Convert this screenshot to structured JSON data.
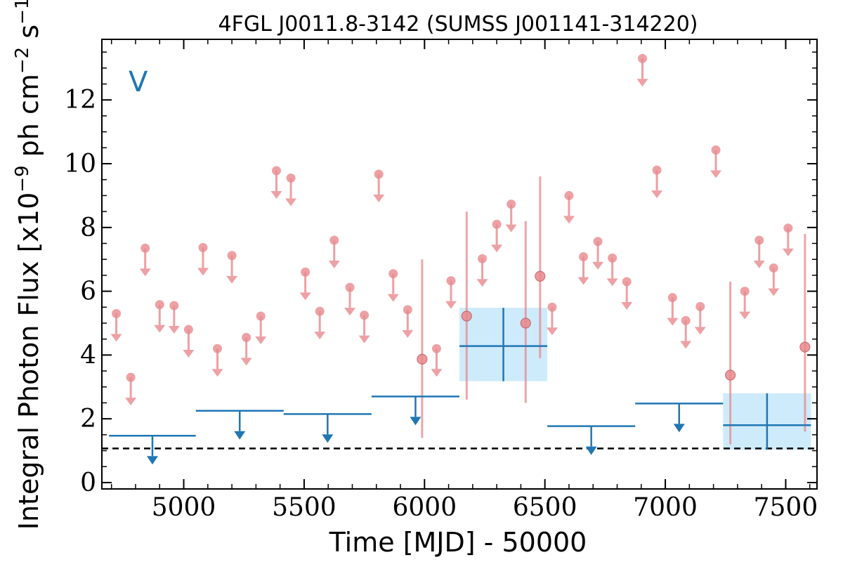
{
  "chart_data": {
    "type": "scatter",
    "title": "4FGL J0011.8-3142 (SUMSS J001141-314220)",
    "panel_label": "V",
    "xlabel": "Time [MJD] - 50000",
    "ylabel_parts": {
      "pre": "Integral Photon Flux [x10",
      "exp1": "−9",
      "mid": " ph cm",
      "exp2": "−2",
      "mid2": " s",
      "exp3": "−1",
      "post": "]"
    },
    "xlim": [
      4660,
      7630
    ],
    "ylim": [
      -0.2,
      13.9
    ],
    "xticks": [
      5000,
      5500,
      6000,
      6500,
      7000,
      7500
    ],
    "xtick_labels": [
      "5000",
      "5500",
      "6000",
      "6500",
      "7000",
      "7500"
    ],
    "yticks": [
      0,
      2,
      4,
      6,
      8,
      10,
      12
    ],
    "ytick_labels": [
      "0",
      "2",
      "4",
      "6",
      "8",
      "10",
      "12"
    ],
    "x_minor_step": 100,
    "y_minor_step": 0.5,
    "baseline_flux": 1.07,
    "colors": {
      "short_bin": "#e8898d",
      "long_bin": "#1f77b4",
      "detection_band": "#cdebfb",
      "baseline": "#000000"
    },
    "series": [
      {
        "kind": "short_bin_upper_limits",
        "points": [
          {
            "x": 4720,
            "y": 5.3
          },
          {
            "x": 4780,
            "y": 3.3
          },
          {
            "x": 4840,
            "y": 7.35
          },
          {
            "x": 4900,
            "y": 5.58
          },
          {
            "x": 4960,
            "y": 5.55
          },
          {
            "x": 5020,
            "y": 4.8
          },
          {
            "x": 5080,
            "y": 7.37
          },
          {
            "x": 5140,
            "y": 4.2
          },
          {
            "x": 5200,
            "y": 7.12
          },
          {
            "x": 5260,
            "y": 4.55
          },
          {
            "x": 5320,
            "y": 5.22
          },
          {
            "x": 5385,
            "y": 9.78
          },
          {
            "x": 5445,
            "y": 9.55
          },
          {
            "x": 5505,
            "y": 6.6
          },
          {
            "x": 5565,
            "y": 5.37
          },
          {
            "x": 5625,
            "y": 7.6
          },
          {
            "x": 5690,
            "y": 6.12
          },
          {
            "x": 5750,
            "y": 5.25
          },
          {
            "x": 5810,
            "y": 9.67
          },
          {
            "x": 5870,
            "y": 6.55
          },
          {
            "x": 5930,
            "y": 5.42
          },
          {
            "x": 6050,
            "y": 4.2
          },
          {
            "x": 6110,
            "y": 6.33
          },
          {
            "x": 6240,
            "y": 7.02
          },
          {
            "x": 6300,
            "y": 8.1
          },
          {
            "x": 6360,
            "y": 8.73
          },
          {
            "x": 6530,
            "y": 5.5
          },
          {
            "x": 6600,
            "y": 9.0
          },
          {
            "x": 6660,
            "y": 7.08
          },
          {
            "x": 6720,
            "y": 7.56
          },
          {
            "x": 6780,
            "y": 7.04
          },
          {
            "x": 6840,
            "y": 6.3
          },
          {
            "x": 6905,
            "y": 13.3
          },
          {
            "x": 6965,
            "y": 9.8
          },
          {
            "x": 7030,
            "y": 5.8
          },
          {
            "x": 7085,
            "y": 5.08
          },
          {
            "x": 7145,
            "y": 5.52
          },
          {
            "x": 7210,
            "y": 10.43
          },
          {
            "x": 7330,
            "y": 6.0
          },
          {
            "x": 7390,
            "y": 7.6
          },
          {
            "x": 7450,
            "y": 6.73
          },
          {
            "x": 7510,
            "y": 7.98
          }
        ]
      },
      {
        "kind": "short_bin_detections",
        "points": [
          {
            "x": 5990,
            "y": 3.87,
            "ylo": 1.4,
            "yhi": 7.0
          },
          {
            "x": 6175,
            "y": 5.22,
            "ylo": 2.6,
            "yhi": 8.5
          },
          {
            "x": 6420,
            "y": 5.0,
            "ylo": 2.5,
            "yhi": 8.2
          },
          {
            "x": 6480,
            "y": 6.47,
            "ylo": 3.9,
            "yhi": 9.6
          },
          {
            "x": 7270,
            "y": 3.37,
            "ylo": 1.2,
            "yhi": 6.3
          },
          {
            "x": 7580,
            "y": 4.25,
            "ylo": 1.6,
            "yhi": 7.8
          }
        ]
      },
      {
        "kind": "long_bin_upper_limits",
        "points": [
          {
            "x0": 4690,
            "x1": 5050,
            "y": 1.47
          },
          {
            "x0": 5050,
            "x1": 5415,
            "y": 2.25
          },
          {
            "x0": 5415,
            "x1": 5780,
            "y": 2.15
          },
          {
            "x0": 5780,
            "x1": 6145,
            "y": 2.7
          },
          {
            "x0": 6510,
            "x1": 6875,
            "y": 1.77
          },
          {
            "x0": 6875,
            "x1": 7240,
            "y": 2.48
          }
        ]
      },
      {
        "kind": "long_bin_detections",
        "points": [
          {
            "x0": 6145,
            "x1": 6510,
            "y": 4.28,
            "ylo": 3.18,
            "yhi": 5.48
          },
          {
            "x0": 7240,
            "x1": 7605,
            "y": 1.8,
            "ylo": 1.03,
            "yhi": 2.8
          }
        ]
      }
    ]
  }
}
